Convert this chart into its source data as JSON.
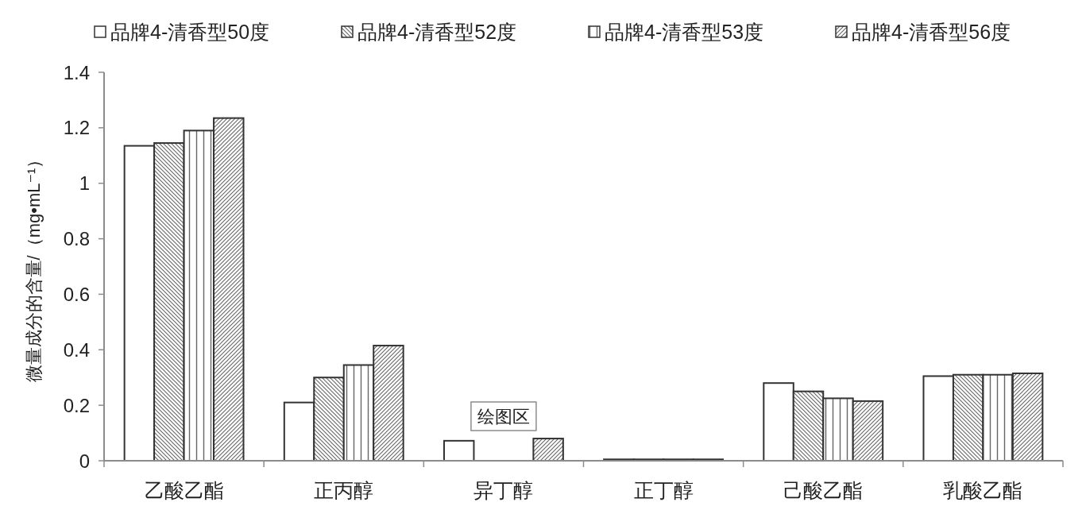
{
  "chart_data": {
    "type": "bar",
    "categories": [
      "乙酸乙酯",
      "正丙醇",
      "异丁醇",
      "正丁醇",
      "己酸乙酯",
      "乳酸乙酯"
    ],
    "series": [
      {
        "name": "品牌4-清香型50度",
        "color": "#ffffff",
        "values": [
          1.135,
          0.21,
          0.072,
          0.005,
          0.28,
          0.305
        ]
      },
      {
        "name": "品牌4-清香型52度",
        "color": "#333333",
        "values": [
          1.145,
          0.3,
          null,
          0.005,
          0.25,
          0.31
        ]
      },
      {
        "name": "品牌4-清香型53度",
        "color": "#333333",
        "values": [
          1.19,
          0.345,
          null,
          0.005,
          0.225,
          0.31
        ]
      },
      {
        "name": "品牌4-清香型56度",
        "color": "#333333",
        "values": [
          1.235,
          0.415,
          0.08,
          0.005,
          0.215,
          0.315
        ]
      }
    ],
    "ylabel": "微量成分的含量/（mg•mL⁻¹）",
    "ylim": [
      0,
      1.4
    ],
    "yticks": [
      0,
      0.2,
      0.4,
      0.6,
      0.8,
      1,
      1.2,
      1.4
    ],
    "legend": "top",
    "annotations": [
      "绘图区"
    ]
  }
}
